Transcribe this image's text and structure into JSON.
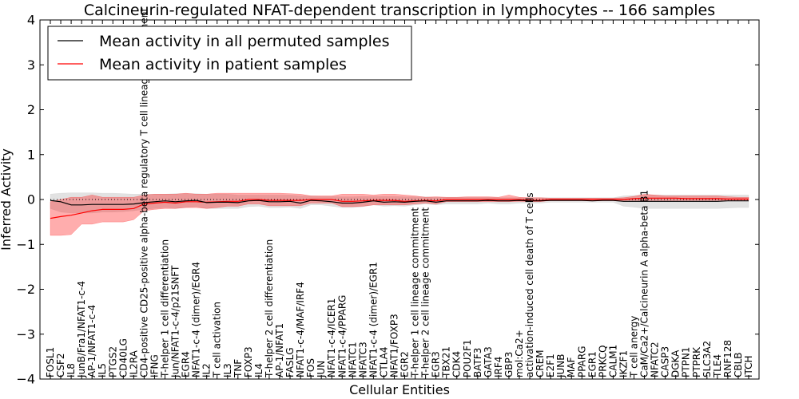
{
  "chart_data": {
    "type": "line",
    "title": "Calcineurin-regulated NFAT-dependent transcription in lymphocytes -- 166 samples",
    "xlabel": "Cellular Entities",
    "ylabel": "Inferred Activity",
    "ylim": [
      -4,
      4
    ],
    "yticks": [
      4,
      3,
      2,
      1,
      0,
      -1,
      -2,
      -3,
      -4
    ],
    "ytick_labels": [
      "4",
      "3",
      "2",
      "1",
      "0",
      "−1",
      "−2",
      "−3",
      "−4"
    ],
    "grid": false,
    "legend_position": "top-left",
    "legend": [
      {
        "label": "Mean activity in all permuted samples",
        "color": "#000000"
      },
      {
        "label": "Mean activity in patient samples",
        "color": "#ff0000"
      }
    ],
    "categories": [
      "FOSL1",
      "CSF2",
      "IL8",
      "JunB/Fra1/NFAT1-c-4",
      "AP-1/NFAT1-c-4",
      "IL5",
      "PTGS2",
      "CD40LG",
      "IL2RA",
      "CD4-positive CD25-positive alpha-beta regulatory T cell lineage commitment",
      "IFNG",
      "T-helper 1 cell differentiation",
      "Jun/NFAT1-c-4/p21SNFT",
      "EGR4",
      "NFAT1-c-4 (dimer)/EGR4",
      "IL2",
      "T cell activation",
      "IL3",
      "TNF",
      "FOXP3",
      "IL4",
      "T-helper 2 cell differentiation",
      "AP-1/NFAT1",
      "FASLG",
      "NFAT1-c-4/MAF/IRF4",
      "FOS",
      "JUN",
      "NFAT1-c-4/ICER1",
      "NFAT1-c-4/PPARG",
      "NFATC1",
      "NFATC3",
      "NFAT1-c-4 (dimer)/EGR1",
      "CTLA4",
      "NFAT1/FOXP3",
      "EGR2",
      "T-helper 1 cell lineage commitment",
      "T-helper 2 cell lineage commitment",
      "EGR3",
      "TBX21",
      "CDK4",
      "POU2F1",
      "BATF3",
      "GATA3",
      "IRF4",
      "GBP3",
      "mol:Ca2+",
      "activation-induced cell death of T cells",
      "CREM",
      "E2F1",
      "JUNB",
      "MAF",
      "PPARG",
      "EGR1",
      "PRKCQ",
      "CALM1",
      "IKZF1",
      "T cell anergy",
      "CaM/Ca2+/Calcineurin A alpha-beta B1",
      "NFATC2",
      "CASP3",
      "DGKA",
      "PTPN1",
      "PTPRK",
      "SLC3A2",
      "TLE4",
      "RNF128",
      "CBLB",
      "ITCH"
    ],
    "series": [
      {
        "name": "Mean activity in all permuted samples",
        "color": "#000000",
        "values": [
          -0.02,
          -0.05,
          -0.12,
          -0.12,
          -0.11,
          -0.11,
          -0.11,
          -0.11,
          -0.1,
          -0.07,
          -0.05,
          -0.03,
          -0.05,
          -0.03,
          -0.02,
          -0.07,
          -0.06,
          -0.06,
          -0.07,
          -0.03,
          -0.02,
          -0.05,
          -0.05,
          -0.04,
          -0.08,
          -0.02,
          -0.03,
          -0.05,
          -0.08,
          -0.08,
          -0.06,
          -0.03,
          -0.06,
          -0.05,
          -0.06,
          -0.04,
          -0.03,
          -0.06,
          -0.03,
          -0.03,
          -0.03,
          -0.03,
          -0.02,
          -0.03,
          -0.03,
          -0.02,
          -0.03,
          -0.03,
          -0.02,
          -0.02,
          -0.02,
          -0.02,
          -0.03,
          -0.02,
          -0.02,
          -0.04,
          -0.04,
          -0.04,
          -0.04,
          -0.04,
          -0.04,
          -0.04,
          -0.04,
          -0.04,
          -0.04,
          -0.03,
          -0.03,
          -0.03
        ],
        "lower": [
          -0.2,
          -0.28,
          -0.3,
          -0.3,
          -0.3,
          -0.28,
          -0.28,
          -0.27,
          -0.25,
          -0.22,
          -0.2,
          -0.18,
          -0.2,
          -0.18,
          -0.16,
          -0.2,
          -0.2,
          -0.2,
          -0.2,
          -0.16,
          -0.15,
          -0.18,
          -0.18,
          -0.17,
          -0.2,
          -0.12,
          -0.12,
          -0.15,
          -0.18,
          -0.18,
          -0.16,
          -0.12,
          -0.15,
          -0.14,
          -0.15,
          -0.12,
          -0.1,
          -0.12,
          -0.1,
          -0.1,
          -0.1,
          -0.1,
          -0.08,
          -0.1,
          -0.1,
          -0.08,
          -0.08,
          -0.08,
          -0.06,
          -0.06,
          -0.06,
          -0.06,
          -0.06,
          -0.06,
          -0.06,
          -0.15,
          -0.17,
          -0.2,
          -0.2,
          -0.2,
          -0.2,
          -0.2,
          -0.2,
          -0.2,
          -0.2,
          -0.19,
          -0.18,
          -0.18
        ],
        "upper": [
          0.12,
          0.14,
          0.15,
          0.15,
          0.15,
          0.14,
          0.14,
          0.13,
          0.12,
          0.12,
          0.12,
          0.12,
          0.13,
          0.13,
          0.13,
          0.12,
          0.12,
          0.12,
          0.1,
          0.1,
          0.1,
          0.1,
          0.1,
          0.1,
          0.08,
          0.08,
          0.07,
          0.07,
          0.06,
          0.06,
          0.07,
          0.07,
          0.07,
          0.07,
          0.06,
          0.06,
          0.06,
          0.05,
          0.05,
          0.05,
          0.05,
          0.05,
          0.05,
          0.04,
          0.04,
          0.04,
          0.04,
          0.04,
          0.04,
          0.04,
          0.04,
          0.04,
          0.04,
          0.04,
          0.04,
          0.08,
          0.09,
          0.1,
          0.1,
          0.1,
          0.1,
          0.1,
          0.1,
          0.1,
          0.1,
          0.1,
          0.1,
          0.1
        ]
      },
      {
        "name": "Mean activity in patient samples",
        "color": "#ff0000",
        "values": [
          -0.42,
          -0.38,
          -0.35,
          -0.3,
          -0.25,
          -0.22,
          -0.22,
          -0.22,
          -0.2,
          -0.1,
          -0.08,
          -0.06,
          -0.08,
          -0.05,
          -0.05,
          -0.06,
          -0.05,
          -0.04,
          -0.04,
          0.0,
          0.0,
          -0.02,
          -0.02,
          -0.02,
          -0.02,
          0.0,
          0.0,
          0.0,
          -0.04,
          -0.04,
          -0.03,
          -0.02,
          -0.02,
          -0.02,
          -0.04,
          -0.03,
          -0.02,
          -0.03,
          0.0,
          0.0,
          0.0,
          0.0,
          0.0,
          0.0,
          0.0,
          0.0,
          -0.02,
          -0.02,
          0.0,
          0.0,
          0.0,
          0.0,
          0.0,
          0.0,
          0.0,
          0.0,
          0.02,
          0.03,
          0.03,
          0.03,
          0.03,
          0.02,
          0.02,
          0.02,
          0.02,
          0.01,
          0.01,
          0.01
        ],
        "lower": [
          -0.8,
          -0.8,
          -0.78,
          -0.55,
          -0.55,
          -0.5,
          -0.5,
          -0.5,
          -0.45,
          -0.25,
          -0.22,
          -0.2,
          -0.2,
          -0.18,
          -0.18,
          -0.2,
          -0.18,
          -0.15,
          -0.15,
          -0.1,
          -0.1,
          -0.14,
          -0.14,
          -0.14,
          -0.14,
          -0.08,
          -0.08,
          -0.08,
          -0.16,
          -0.16,
          -0.15,
          -0.12,
          -0.12,
          -0.12,
          -0.12,
          -0.1,
          -0.08,
          -0.1,
          -0.05,
          -0.05,
          -0.05,
          -0.05,
          -0.05,
          -0.05,
          -0.05,
          -0.04,
          -0.05,
          -0.05,
          -0.02,
          -0.02,
          -0.02,
          -0.02,
          -0.02,
          -0.02,
          -0.02,
          -0.02,
          -0.02,
          -0.02,
          -0.02,
          -0.02,
          -0.02,
          -0.02,
          -0.02,
          -0.02,
          -0.02,
          -0.02,
          -0.02,
          -0.02
        ],
        "upper": [
          -0.05,
          0.0,
          0.05,
          0.05,
          0.1,
          0.05,
          0.05,
          0.05,
          0.05,
          0.1,
          0.12,
          0.12,
          0.12,
          0.14,
          0.12,
          0.12,
          0.14,
          0.14,
          0.14,
          0.14,
          0.14,
          0.14,
          0.14,
          0.13,
          0.12,
          0.08,
          0.08,
          0.08,
          0.12,
          0.12,
          0.12,
          0.1,
          0.12,
          0.12,
          0.1,
          0.08,
          0.05,
          0.06,
          0.05,
          0.05,
          0.06,
          0.06,
          0.06,
          0.05,
          0.1,
          0.05,
          0.04,
          0.04,
          0.03,
          0.03,
          0.03,
          0.03,
          0.03,
          0.03,
          0.03,
          0.04,
          0.07,
          0.12,
          0.1,
          0.08,
          0.08,
          0.08,
          0.08,
          0.08,
          0.08,
          0.06,
          0.05,
          0.05
        ]
      }
    ]
  }
}
